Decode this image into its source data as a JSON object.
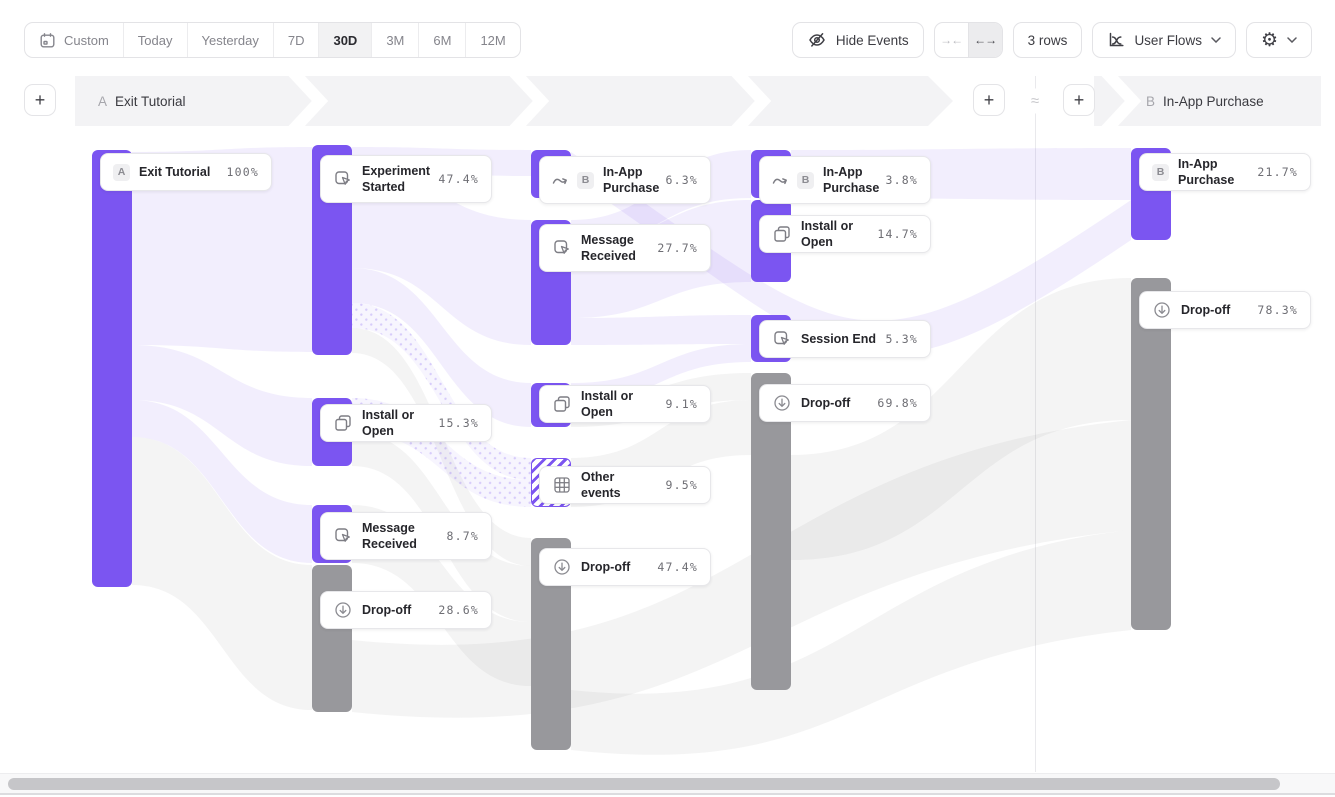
{
  "toolbar": {
    "date_ranges": [
      {
        "label": "Custom",
        "icon": "calendar",
        "active": false
      },
      {
        "label": "Today",
        "active": false
      },
      {
        "label": "Yesterday",
        "active": false
      },
      {
        "label": "7D",
        "active": false
      },
      {
        "label": "30D",
        "active": true
      },
      {
        "label": "3M",
        "active": false
      },
      {
        "label": "6M",
        "active": false
      },
      {
        "label": "12M",
        "active": false
      }
    ],
    "hide_events_label": "Hide Events",
    "collapse_icon": "arrows-collapse-icon",
    "expand_icon": "arrows-expand-icon",
    "expand_selected": true,
    "rows_label": "3 rows",
    "view_label": "User Flows",
    "settings_icon": "gear-icon"
  },
  "flow_header": {
    "a_badge": "A",
    "a_label": "Exit Tutorial",
    "b_badge": "B",
    "b_label": "In-App Purchase",
    "approx_symbol": "≈"
  },
  "colors": {
    "event_bar": "#7B55F1",
    "dropoff_bar": "#98989C",
    "event_ribbon": "#7C55F0",
    "dropoff_ribbon": "#808086",
    "band_gray": "#f3f3f5"
  },
  "chart_data": {
    "type": "sankey",
    "title": "User Flows from Exit Tutorial (A) to In-App Purchase (B)",
    "start_event": {
      "badge": "A",
      "label": "Exit Tutorial"
    },
    "end_event": {
      "badge": "B",
      "label": "In-App Purchase"
    },
    "columns": [
      {
        "nodes": [
          {
            "label": "Exit Tutorial",
            "badge": "A",
            "pct": "100%",
            "kind": "event",
            "icon": null
          }
        ]
      },
      {
        "nodes": [
          {
            "label": "Experiment Started",
            "pct": "47.4%",
            "kind": "event",
            "icon": "click-event"
          },
          {
            "label": "Install or Open",
            "pct": "15.3%",
            "kind": "event",
            "icon": "copy"
          },
          {
            "label": "Message Received",
            "pct": "8.7%",
            "kind": "event",
            "icon": "click-event"
          },
          {
            "label": "Drop-off",
            "pct": "28.6%",
            "kind": "drop-off",
            "icon": "drop-off"
          }
        ]
      },
      {
        "nodes": [
          {
            "label": "In-App Purchase",
            "pct": "6.3%",
            "kind": "event",
            "icon": "jump",
            "badge": "B"
          },
          {
            "label": "Message Received",
            "pct": "27.7%",
            "kind": "event",
            "icon": "click-event"
          },
          {
            "label": "Install or Open",
            "pct": "9.1%",
            "kind": "event",
            "icon": "copy"
          },
          {
            "label": "Other events",
            "pct": "9.5%",
            "kind": "other",
            "icon": "grid"
          },
          {
            "label": "Drop-off",
            "pct": "47.4%",
            "kind": "drop-off",
            "icon": "drop-off"
          }
        ]
      },
      {
        "nodes": [
          {
            "label": "In-App Purchase",
            "pct": "3.8%",
            "kind": "event",
            "icon": "jump",
            "badge": "B"
          },
          {
            "label": "Install or Open",
            "pct": "14.7%",
            "kind": "event",
            "icon": "copy"
          },
          {
            "label": "Session End",
            "pct": "5.3%",
            "kind": "event",
            "icon": "click-event"
          },
          {
            "label": "Drop-off",
            "pct": "69.8%",
            "kind": "drop-off",
            "icon": "drop-off"
          }
        ]
      },
      {
        "nodes": [
          {
            "label": "In-App Purchase",
            "pct": "21.7%",
            "kind": "event",
            "icon": null,
            "badge": "B"
          },
          {
            "label": "Drop-off",
            "pct": "78.3%",
            "kind": "drop-off",
            "icon": "drop-off"
          }
        ]
      }
    ]
  }
}
